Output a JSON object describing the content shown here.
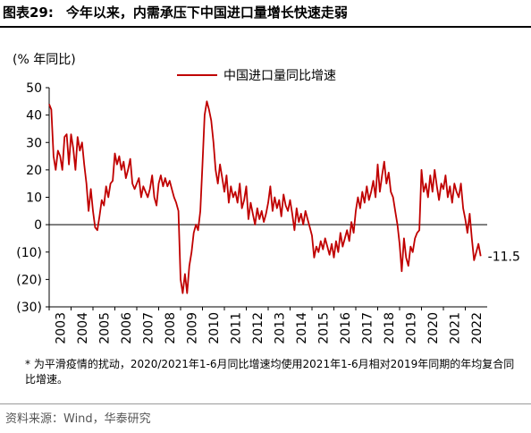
{
  "figure": {
    "label": "图表29:",
    "title": "今年以来，内需承压下中国进口量增长快速走弱"
  },
  "footnote": "* 为平滑疫情的扰动，2020/2021年1-6月同比增速均使用2021年1-6月相对2019年同期的年均复合同比增速。",
  "source": "资料来源：Wind，华泰研究",
  "chart_data": {
    "type": "line",
    "unit_label": "(% 年同比)",
    "ylim": [
      -30,
      50
    ],
    "yticks": [
      50,
      40,
      30,
      20,
      10,
      0,
      -10,
      -20,
      -30
    ],
    "ytick_labels": [
      "50",
      "40",
      "30",
      "20",
      "10",
      "0",
      "(10)",
      "(20)",
      "(30)"
    ],
    "xlim": [
      2003.0,
      2023.0
    ],
    "xticks": [
      "2003",
      "2004",
      "2005",
      "2006",
      "2007",
      "2008",
      "2009",
      "2010",
      "2011",
      "2012",
      "2013",
      "2014",
      "2015",
      "2016",
      "2017",
      "2018",
      "2019",
      "2020",
      "2021",
      "2022"
    ],
    "legend_position": "top-center",
    "grid": false,
    "annotation": "-11.5",
    "series": [
      {
        "name": "中国进口量同比增速",
        "color": "#c00000",
        "points": [
          [
            2003.0,
            44
          ],
          [
            2003.1,
            42
          ],
          [
            2003.2,
            25
          ],
          [
            2003.3,
            20
          ],
          [
            2003.4,
            27
          ],
          [
            2003.5,
            25
          ],
          [
            2003.6,
            20
          ],
          [
            2003.7,
            32
          ],
          [
            2003.8,
            33
          ],
          [
            2003.9,
            22
          ],
          [
            2004.0,
            33
          ],
          [
            2004.1,
            28
          ],
          [
            2004.2,
            20
          ],
          [
            2004.3,
            32
          ],
          [
            2004.4,
            27
          ],
          [
            2004.5,
            30
          ],
          [
            2004.6,
            22
          ],
          [
            2004.7,
            15
          ],
          [
            2004.8,
            5
          ],
          [
            2004.9,
            13
          ],
          [
            2005.0,
            5
          ],
          [
            2005.1,
            -1
          ],
          [
            2005.2,
            -2
          ],
          [
            2005.3,
            3
          ],
          [
            2005.4,
            9
          ],
          [
            2005.5,
            7
          ],
          [
            2005.6,
            14
          ],
          [
            2005.7,
            10
          ],
          [
            2005.8,
            15
          ],
          [
            2005.9,
            16
          ],
          [
            2006.0,
            26
          ],
          [
            2006.1,
            22
          ],
          [
            2006.2,
            25
          ],
          [
            2006.3,
            20
          ],
          [
            2006.4,
            23
          ],
          [
            2006.5,
            17
          ],
          [
            2006.6,
            20
          ],
          [
            2006.7,
            24
          ],
          [
            2006.8,
            15
          ],
          [
            2006.9,
            13
          ],
          [
            2007.0,
            15
          ],
          [
            2007.1,
            17
          ],
          [
            2007.2,
            10
          ],
          [
            2007.3,
            14
          ],
          [
            2007.4,
            12
          ],
          [
            2007.5,
            10
          ],
          [
            2007.6,
            13
          ],
          [
            2007.7,
            18
          ],
          [
            2007.8,
            10
          ],
          [
            2007.9,
            7
          ],
          [
            2008.0,
            15
          ],
          [
            2008.1,
            18
          ],
          [
            2008.2,
            14
          ],
          [
            2008.3,
            17
          ],
          [
            2008.4,
            14
          ],
          [
            2008.5,
            16
          ],
          [
            2008.6,
            13
          ],
          [
            2008.7,
            10
          ],
          [
            2008.8,
            8
          ],
          [
            2008.9,
            5
          ],
          [
            2009.0,
            -20
          ],
          [
            2009.1,
            -25
          ],
          [
            2009.2,
            -18
          ],
          [
            2009.3,
            -25
          ],
          [
            2009.4,
            -15
          ],
          [
            2009.5,
            -10
          ],
          [
            2009.6,
            -3
          ],
          [
            2009.7,
            0
          ],
          [
            2009.8,
            -2
          ],
          [
            2009.9,
            5
          ],
          [
            2010.0,
            22
          ],
          [
            2010.1,
            40
          ],
          [
            2010.2,
            45
          ],
          [
            2010.3,
            42
          ],
          [
            2010.4,
            38
          ],
          [
            2010.5,
            30
          ],
          [
            2010.6,
            20
          ],
          [
            2010.7,
            15
          ],
          [
            2010.8,
            22
          ],
          [
            2010.9,
            17
          ],
          [
            2011.0,
            12
          ],
          [
            2011.1,
            18
          ],
          [
            2011.2,
            8
          ],
          [
            2011.3,
            14
          ],
          [
            2011.4,
            10
          ],
          [
            2011.5,
            12
          ],
          [
            2011.6,
            8
          ],
          [
            2011.7,
            15
          ],
          [
            2011.8,
            6
          ],
          [
            2011.9,
            9
          ],
          [
            2012.0,
            14
          ],
          [
            2012.1,
            2
          ],
          [
            2012.2,
            8
          ],
          [
            2012.3,
            4
          ],
          [
            2012.4,
            0
          ],
          [
            2012.5,
            6
          ],
          [
            2012.6,
            2
          ],
          [
            2012.7,
            5
          ],
          [
            2012.8,
            1
          ],
          [
            2012.9,
            4
          ],
          [
            2013.0,
            8
          ],
          [
            2013.1,
            14
          ],
          [
            2013.2,
            5
          ],
          [
            2013.3,
            10
          ],
          [
            2013.4,
            6
          ],
          [
            2013.5,
            9
          ],
          [
            2013.6,
            3
          ],
          [
            2013.7,
            11
          ],
          [
            2013.8,
            7
          ],
          [
            2013.9,
            5
          ],
          [
            2014.0,
            9
          ],
          [
            2014.1,
            4
          ],
          [
            2014.2,
            -2
          ],
          [
            2014.3,
            6
          ],
          [
            2014.4,
            1
          ],
          [
            2014.5,
            4
          ],
          [
            2014.6,
            0
          ],
          [
            2014.7,
            5
          ],
          [
            2014.8,
            2
          ],
          [
            2014.9,
            -1
          ],
          [
            2015.0,
            -4
          ],
          [
            2015.1,
            -12
          ],
          [
            2015.2,
            -8
          ],
          [
            2015.3,
            -10
          ],
          [
            2015.4,
            -6
          ],
          [
            2015.5,
            -9
          ],
          [
            2015.6,
            -5
          ],
          [
            2015.7,
            -8
          ],
          [
            2015.8,
            -11
          ],
          [
            2015.9,
            -7
          ],
          [
            2016.0,
            -12
          ],
          [
            2016.1,
            -6
          ],
          [
            2016.2,
            -10
          ],
          [
            2016.3,
            -3
          ],
          [
            2016.4,
            -8
          ],
          [
            2016.5,
            -5
          ],
          [
            2016.6,
            -2
          ],
          [
            2016.7,
            -6
          ],
          [
            2016.8,
            1
          ],
          [
            2016.9,
            -3
          ],
          [
            2017.0,
            5
          ],
          [
            2017.1,
            10
          ],
          [
            2017.2,
            6
          ],
          [
            2017.3,
            12
          ],
          [
            2017.4,
            8
          ],
          [
            2017.5,
            14
          ],
          [
            2017.6,
            9
          ],
          [
            2017.7,
            12
          ],
          [
            2017.8,
            16
          ],
          [
            2017.9,
            10
          ],
          [
            2018.0,
            22
          ],
          [
            2018.1,
            12
          ],
          [
            2018.2,
            18
          ],
          [
            2018.3,
            23
          ],
          [
            2018.4,
            15
          ],
          [
            2018.5,
            19
          ],
          [
            2018.6,
            12
          ],
          [
            2018.7,
            10
          ],
          [
            2018.8,
            5
          ],
          [
            2018.9,
            0
          ],
          [
            2019.0,
            -7
          ],
          [
            2019.1,
            -17
          ],
          [
            2019.2,
            -5
          ],
          [
            2019.3,
            -12
          ],
          [
            2019.4,
            -15
          ],
          [
            2019.5,
            -8
          ],
          [
            2019.6,
            -10
          ],
          [
            2019.7,
            -5
          ],
          [
            2019.8,
            -3
          ],
          [
            2019.9,
            -2
          ],
          [
            2020.0,
            20
          ],
          [
            2020.1,
            12
          ],
          [
            2020.2,
            15
          ],
          [
            2020.3,
            10
          ],
          [
            2020.4,
            18
          ],
          [
            2020.5,
            12
          ],
          [
            2020.6,
            20
          ],
          [
            2020.7,
            14
          ],
          [
            2020.8,
            9
          ],
          [
            2020.9,
            15
          ],
          [
            2021.0,
            13
          ],
          [
            2021.1,
            18
          ],
          [
            2021.2,
            10
          ],
          [
            2021.3,
            14
          ],
          [
            2021.4,
            8
          ],
          [
            2021.5,
            15
          ],
          [
            2021.6,
            12
          ],
          [
            2021.7,
            10
          ],
          [
            2021.8,
            15
          ],
          [
            2021.9,
            6
          ],
          [
            2022.0,
            2
          ],
          [
            2022.1,
            -3
          ],
          [
            2022.2,
            4
          ],
          [
            2022.3,
            -5
          ],
          [
            2022.4,
            -13
          ],
          [
            2022.5,
            -10
          ],
          [
            2022.6,
            -7
          ],
          [
            2022.7,
            -11.5
          ]
        ]
      }
    ]
  }
}
